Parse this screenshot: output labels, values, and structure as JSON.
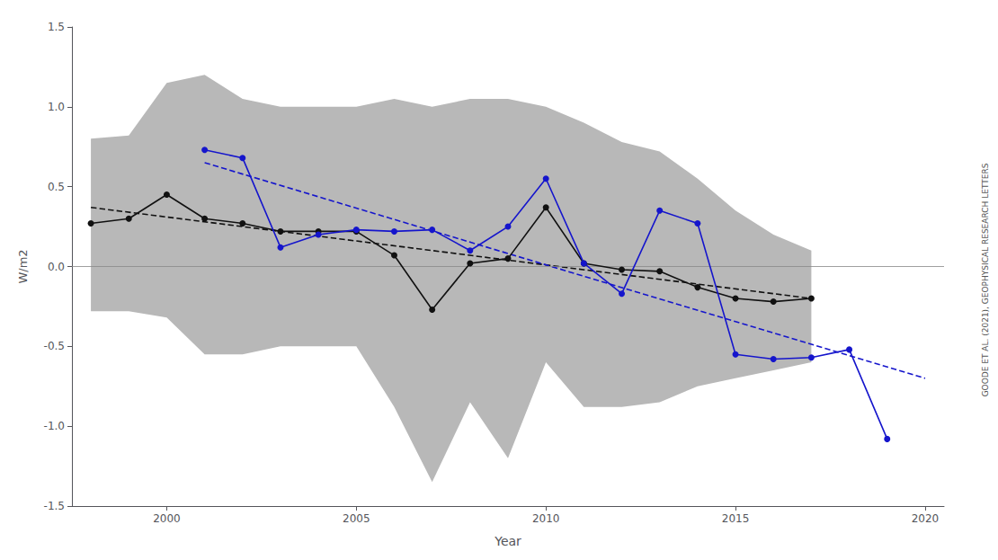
{
  "chart_data": {
    "type": "line",
    "xlabel": "Year",
    "ylabel": "W/m2",
    "xlim": [
      1997.5,
      2020.5
    ],
    "ylim": [
      -1.5,
      1.5
    ],
    "xticks": [
      2000,
      2005,
      2010,
      2015,
      2020
    ],
    "yticks": [
      -1.5,
      {
        "value": -1.0,
        "label": "-1.0"
      },
      -0.5,
      {
        "value": 0.0,
        "label": "0.0"
      },
      0.5,
      {
        "value": 1.0,
        "label": "1.0"
      },
      1.5
    ],
    "grid": false,
    "hlines": [
      0
    ],
    "annotation": "GOODE ET AL. (2021), GEOPHYSICAL RESEARCH LETTERS",
    "series": [
      {
        "type": "band",
        "color": "#b8b8b8",
        "x": [
          1998,
          1999,
          2000,
          2001,
          2002,
          2003,
          2004,
          2005,
          2006,
          2007,
          2008,
          2009,
          2010,
          2011,
          2012,
          2013,
          2014,
          2015,
          2016,
          2017
        ],
        "lower": [
          -0.28,
          -0.28,
          -0.32,
          -0.55,
          -0.55,
          -0.5,
          -0.5,
          -0.5,
          -0.88,
          -1.35,
          -0.85,
          -1.2,
          -0.6,
          -0.88,
          -0.88,
          -0.85,
          -0.75,
          -0.7,
          -0.65,
          -0.6
        ],
        "upper": [
          0.8,
          0.82,
          1.15,
          1.2,
          1.05,
          1.0,
          1.0,
          1.0,
          1.05,
          1.0,
          1.05,
          1.05,
          1.0,
          0.9,
          0.78,
          0.72,
          0.55,
          0.35,
          0.2,
          0.1
        ]
      },
      {
        "type": "line",
        "color": "#111111",
        "marker": "circle",
        "x": [
          1998,
          1999,
          2000,
          2001,
          2002,
          2003,
          2004,
          2005,
          2006,
          2007,
          2008,
          2009,
          2010,
          2011,
          2012,
          2013,
          2014,
          2015,
          2016,
          2017
        ],
        "values": [
          0.27,
          0.3,
          0.45,
          0.3,
          0.27,
          0.22,
          0.22,
          0.22,
          0.07,
          -0.27,
          0.02,
          0.05,
          0.37,
          0.02,
          -0.02,
          -0.03,
          -0.13,
          -0.2,
          -0.22,
          -0.2
        ]
      },
      {
        "type": "line",
        "color": "#1515cc",
        "marker": "circle",
        "x": [
          2001,
          2002,
          2003,
          2004,
          2005,
          2006,
          2007,
          2008,
          2009,
          2010,
          2011,
          2012,
          2013,
          2014,
          2015,
          2016,
          2017,
          2018,
          2019
        ],
        "values": [
          0.73,
          0.68,
          0.12,
          0.2,
          0.23,
          0.22,
          0.23,
          0.1,
          0.25,
          0.55,
          0.02,
          -0.17,
          0.35,
          0.27,
          -0.55,
          -0.58,
          -0.57,
          -0.52,
          -1.08
        ]
      },
      {
        "type": "line",
        "color": "#111111",
        "line_style": "dashed",
        "x": [
          1998,
          2017
        ],
        "values": [
          0.37,
          -0.2
        ]
      },
      {
        "type": "line",
        "color": "#1515cc",
        "line_style": "dashed",
        "x": [
          2001,
          2020
        ],
        "values": [
          0.65,
          -0.7
        ]
      }
    ]
  }
}
